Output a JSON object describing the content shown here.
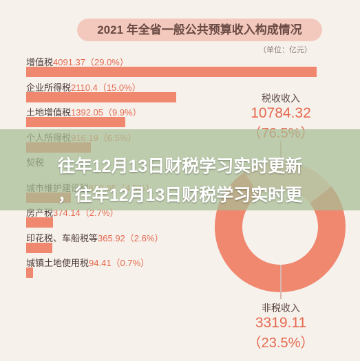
{
  "chart_data": {
    "type": "bar",
    "title": "2021 年全省一般公共预算收入构成情况",
    "unit": "（单位：亿元）",
    "categories": [
      "增值税",
      "企业所得税",
      "土地增值税",
      "个人所得税",
      "契税",
      "城市维护建设税",
      "房产税",
      "印花税、车船税等",
      "城镇土地使用税"
    ],
    "values": [
      4091.37,
      2110.4,
      1392.05,
      916.19,
      0,
      630.05,
      374.14,
      365.92,
      94.41
    ],
    "value_labels": [
      "4091.37（29.0%）",
      "2110.4（15.0%）",
      "1392.05（9.9%）",
      "916.19（6.5%）",
      "",
      "630.05（4.5%）",
      "374.14（2.7%）",
      "365.92（2.6%）",
      "94.41（0.7%）"
    ],
    "xlim": [
      0,
      4091.37
    ],
    "donut": {
      "type": "pie",
      "slices": [
        {
          "name": "税收收入",
          "value": 10784.32,
          "value_label": "10784.32",
          "pct_label": "（76.5%）",
          "color": "#f0876f"
        },
        {
          "name": "非税收入",
          "value": 3319.11,
          "value_label": "3319.11",
          "pct_label": "（23.5%）",
          "color": "#f6c9bc"
        }
      ]
    }
  },
  "overlay": {
    "line1": "往年12月13日财税学习实时更新",
    "line2": "，往年12月13日财税学习实时更"
  },
  "colors": {
    "bar": "#f0876f",
    "accent": "#e5694e",
    "background": "#f7f1ec",
    "overlay": "#a8be96"
  }
}
